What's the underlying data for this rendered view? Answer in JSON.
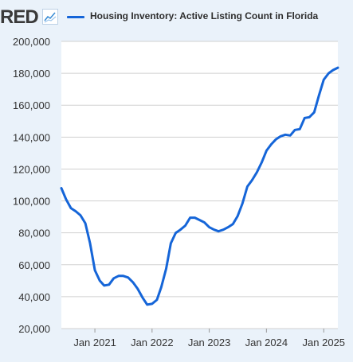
{
  "brand": {
    "logo_text": "RED"
  },
  "icons": {
    "logo_icon": "line-chart-icon"
  },
  "colors": {
    "series": "#1565d8",
    "grid": "#d0d0d0",
    "plot_bg": "#ffffff",
    "page_bg": "#eaf2fa",
    "tick_text": "#333333"
  },
  "chart_data": {
    "type": "line",
    "title": "",
    "xlabel": "",
    "ylabel": "",
    "grid": true,
    "legend": "top",
    "xlim": [
      "2020-06-01",
      "2025-04-01"
    ],
    "ylim": [
      20000,
      200000
    ],
    "y_ticks": [
      20000,
      40000,
      60000,
      80000,
      100000,
      120000,
      140000,
      160000,
      180000,
      200000
    ],
    "y_tick_labels": [
      "20,000",
      "40,000",
      "60,000",
      "80,000",
      "100,000",
      "120,000",
      "140,000",
      "160,000",
      "180,000",
      "200,000"
    ],
    "x_ticks": [
      "2021-01-01",
      "2022-01-01",
      "2023-01-01",
      "2024-01-01",
      "2025-01-01"
    ],
    "x_tick_labels": [
      "Jan 2021",
      "Jan 2022",
      "Jan 2023",
      "Jan 2024",
      "Jan 2025"
    ],
    "series": [
      {
        "name": "Housing Inventory: Active Listing Count in Florida",
        "color": "#1565d8",
        "x": [
          "2020-06-01",
          "2020-07-01",
          "2020-08-01",
          "2020-09-01",
          "2020-10-01",
          "2020-11-01",
          "2020-12-01",
          "2021-01-01",
          "2021-02-01",
          "2021-03-01",
          "2021-04-01",
          "2021-05-01",
          "2021-06-01",
          "2021-07-01",
          "2021-08-01",
          "2021-09-01",
          "2021-10-01",
          "2021-11-01",
          "2021-12-01",
          "2022-01-01",
          "2022-02-01",
          "2022-03-01",
          "2022-04-01",
          "2022-05-01",
          "2022-06-01",
          "2022-07-01",
          "2022-08-01",
          "2022-09-01",
          "2022-10-01",
          "2022-11-01",
          "2022-12-01",
          "2023-01-01",
          "2023-02-01",
          "2023-03-01",
          "2023-04-01",
          "2023-05-01",
          "2023-06-01",
          "2023-07-01",
          "2023-08-01",
          "2023-09-01",
          "2023-10-01",
          "2023-11-01",
          "2023-12-01",
          "2024-01-01",
          "2024-02-01",
          "2024-03-01",
          "2024-04-01",
          "2024-05-01",
          "2024-06-01",
          "2024-07-01",
          "2024-08-01",
          "2024-09-01",
          "2024-10-01",
          "2024-11-01",
          "2024-12-01",
          "2025-01-01",
          "2025-02-01",
          "2025-03-01",
          "2025-04-01"
        ],
        "values": [
          108000,
          101000,
          95500,
          93500,
          91000,
          86000,
          73500,
          56500,
          50000,
          47000,
          47500,
          51500,
          53000,
          53000,
          52000,
          49000,
          45000,
          39500,
          35000,
          35500,
          38000,
          46000,
          57500,
          73500,
          80000,
          82000,
          84500,
          89500,
          89500,
          88000,
          86500,
          83500,
          82000,
          81000,
          82000,
          83500,
          85500,
          90500,
          98500,
          109000,
          113000,
          118000,
          124000,
          131500,
          135500,
          138500,
          140500,
          141500,
          141000,
          144500,
          145000,
          152000,
          152500,
          155500,
          166000,
          176000,
          180000,
          182000,
          183500
        ]
      }
    ]
  }
}
